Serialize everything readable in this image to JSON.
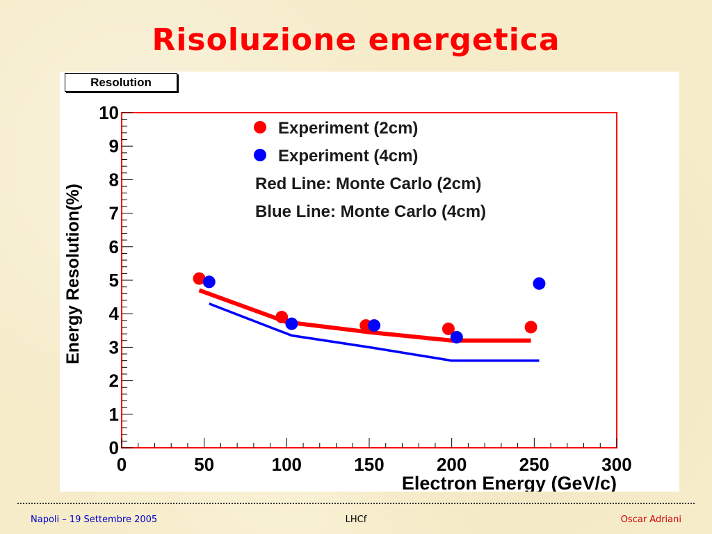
{
  "slide": {
    "title": "Risoluzione energetica",
    "footer": {
      "left": "Napoli – 19 Settembre 2005",
      "center": "LHCf",
      "right": "Oscar Adriani"
    }
  },
  "colors": {
    "title": "#ff0000",
    "red_series": "#ff0000",
    "blue_series": "#0000ff",
    "frame": "#ff0000",
    "footer_left": "#0000cc",
    "footer_right": "#cc0000"
  },
  "chart_data": {
    "type": "scatter",
    "title": "Resolution",
    "xlabel": "Electron Energy (GeV/c)",
    "ylabel": "Energy Resolution(%)",
    "xlim": [
      0,
      300
    ],
    "ylim": [
      0,
      10
    ],
    "x_major_ticks": [
      0,
      50,
      100,
      150,
      200,
      250,
      300
    ],
    "x_minor_step": 10,
    "y_major_ticks": [
      0,
      1,
      2,
      3,
      4,
      5,
      6,
      7,
      8,
      9,
      10
    ],
    "y_minor_step": 0.2,
    "grid": false,
    "legend_position": "top-right",
    "legend": [
      {
        "marker": "red-dot",
        "label": "Experiment (2cm)"
      },
      {
        "marker": "blue-dot",
        "label": "Experiment (4cm)"
      },
      {
        "marker": "",
        "label": "Red Line: Monte Carlo (2cm)"
      },
      {
        "marker": "",
        "label": "Blue Line: Monte Carlo (4cm)"
      }
    ],
    "series": [
      {
        "name": "Experiment (2cm)",
        "kind": "points",
        "color": "#ff0000",
        "x": [
          47,
          97,
          148,
          198,
          248
        ],
        "y": [
          5.05,
          3.9,
          3.65,
          3.55,
          3.6
        ]
      },
      {
        "name": "Experiment (4cm)",
        "kind": "points",
        "color": "#0000ff",
        "x": [
          53,
          103,
          153,
          203,
          253
        ],
        "y": [
          4.95,
          3.7,
          3.65,
          3.3,
          4.9
        ]
      },
      {
        "name": "Red Line: Monte Carlo (2cm)",
        "kind": "line",
        "color": "#ff0000",
        "x": [
          47,
          100,
          150,
          200,
          248
        ],
        "y": [
          4.7,
          3.75,
          3.45,
          3.2,
          3.2
        ]
      },
      {
        "name": "Blue Line: Monte Carlo (4cm)",
        "kind": "line",
        "color": "#0000ff",
        "x": [
          53,
          103,
          150,
          200,
          253
        ],
        "y": [
          4.3,
          3.35,
          3.0,
          2.6,
          2.6
        ]
      }
    ]
  }
}
